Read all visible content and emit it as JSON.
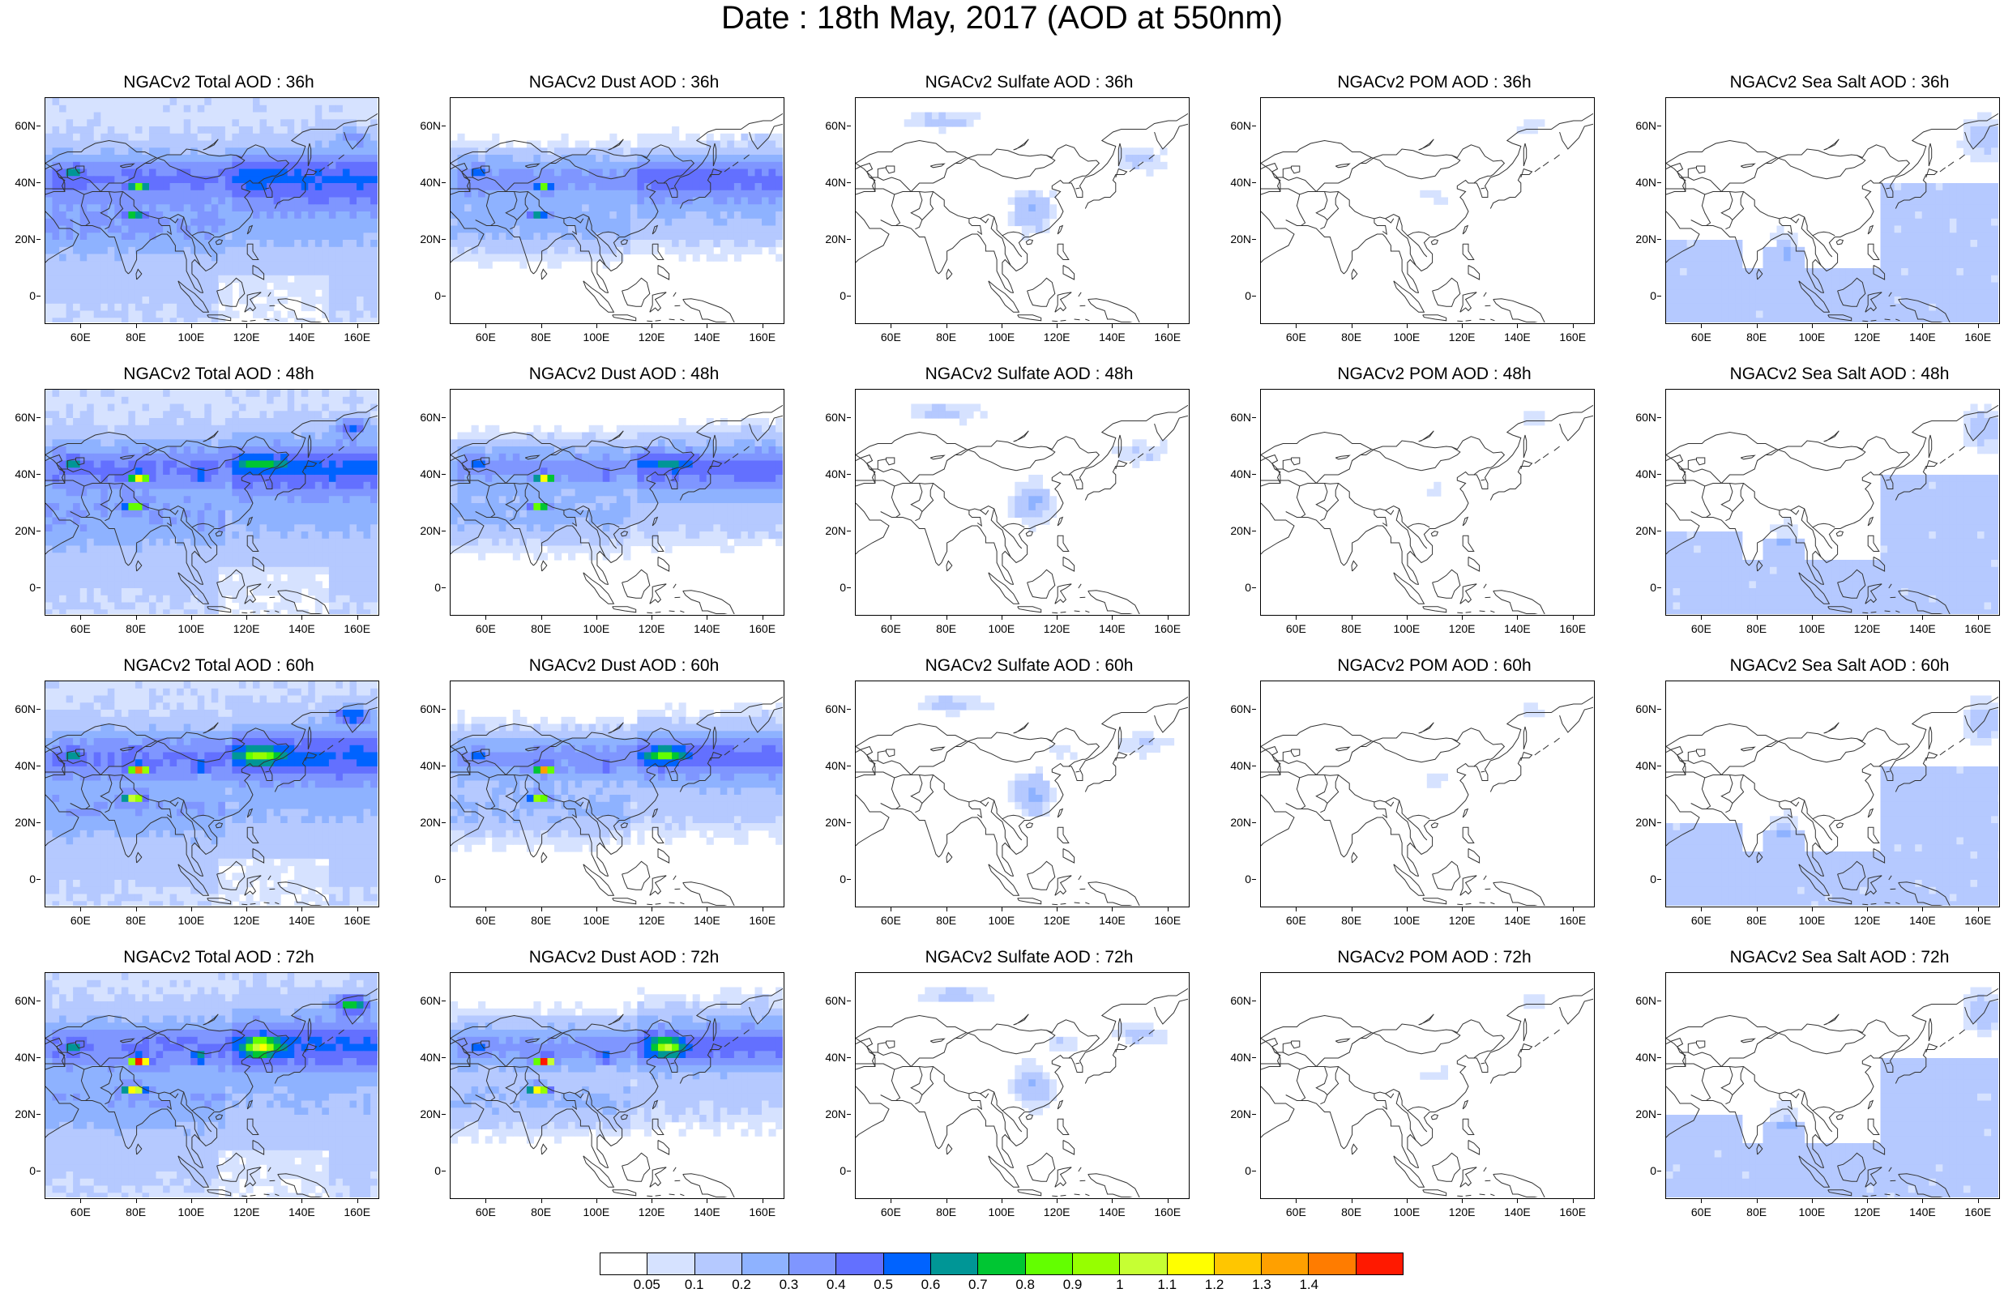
{
  "title": "Date : 18th May, 2017 (AOD at 550nm)",
  "panels": [
    {
      "title": "NGACv2 Total AOD : 36h",
      "field": "total",
      "hour": 36
    },
    {
      "title": "NGACv2 Dust AOD : 36h",
      "field": "dust",
      "hour": 36
    },
    {
      "title": "NGACv2 Sulfate AOD : 36h",
      "field": "sulfate",
      "hour": 36
    },
    {
      "title": "NGACv2 POM AOD : 36h",
      "field": "pom",
      "hour": 36
    },
    {
      "title": "NGACv2 Sea Salt AOD : 36h",
      "field": "seasalt",
      "hour": 36
    },
    {
      "title": "NGACv2 Total AOD : 48h",
      "field": "total",
      "hour": 48
    },
    {
      "title": "NGACv2 Dust AOD : 48h",
      "field": "dust",
      "hour": 48
    },
    {
      "title": "NGACv2 Sulfate AOD : 48h",
      "field": "sulfate",
      "hour": 48
    },
    {
      "title": "NGACv2 POM AOD : 48h",
      "field": "pom",
      "hour": 48
    },
    {
      "title": "NGACv2 Sea Salt AOD : 48h",
      "field": "seasalt",
      "hour": 48
    },
    {
      "title": "NGACv2 Total AOD : 60h",
      "field": "total",
      "hour": 60
    },
    {
      "title": "NGACv2 Dust AOD : 60h",
      "field": "dust",
      "hour": 60
    },
    {
      "title": "NGACv2 Sulfate AOD : 60h",
      "field": "sulfate",
      "hour": 60
    },
    {
      "title": "NGACv2 POM AOD : 60h",
      "field": "pom",
      "hour": 60
    },
    {
      "title": "NGACv2 Sea Salt AOD : 60h",
      "field": "seasalt",
      "hour": 60
    },
    {
      "title": "NGACv2 Total AOD : 72h",
      "field": "total",
      "hour": 72
    },
    {
      "title": "NGACv2 Dust AOD : 72h",
      "field": "dust",
      "hour": 72
    },
    {
      "title": "NGACv2 Sulfate AOD : 72h",
      "field": "sulfate",
      "hour": 72
    },
    {
      "title": "NGACv2 POM AOD : 72h",
      "field": "pom",
      "hour": 72
    },
    {
      "title": "NGACv2 Sea Salt  AOD : 72h",
      "field": "seasalt",
      "hour": 72
    }
  ],
  "map": {
    "lon_range": [
      47,
      168
    ],
    "lat_range": [
      -10,
      70
    ],
    "lon_ticks": [
      "60E",
      "80E",
      "100E",
      "120E",
      "140E",
      "160E"
    ],
    "lon_tick_values": [
      60,
      80,
      100,
      120,
      140,
      160
    ],
    "lat_ticks": [
      "60N",
      "40N",
      "20N",
      "0"
    ],
    "lat_tick_values": [
      60,
      40,
      20,
      0
    ]
  },
  "colorbar": {
    "labels": [
      "0.05",
      "0.1",
      "0.2",
      "0.3",
      "0.4",
      "0.5",
      "0.6",
      "0.7",
      "0.8",
      "0.9",
      "1",
      "1.1",
      "1.2",
      "1.3",
      "1.4"
    ],
    "colors": [
      "#ffffff",
      "#d6e2ff",
      "#b5c9ff",
      "#8eb2ff",
      "#7f96ff",
      "#6370ff",
      "#0063ff",
      "#009696",
      "#00c633",
      "#63ff00",
      "#96ff00",
      "#c6ff33",
      "#ffff00",
      "#ffc600",
      "#ffa000",
      "#ff7c00",
      "#ff1900"
    ]
  }
}
